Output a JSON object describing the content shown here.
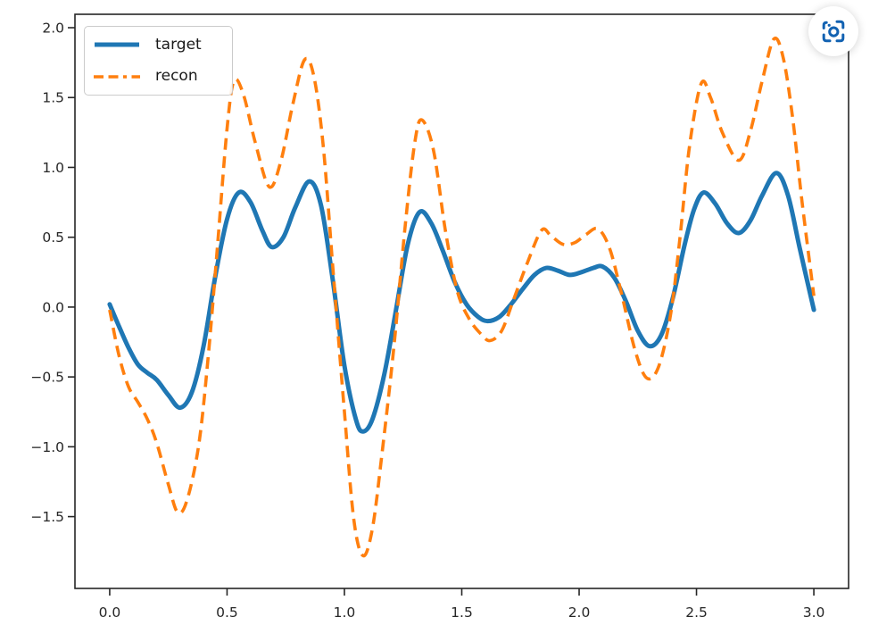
{
  "page": {
    "background": "#ffffff"
  },
  "capture_button": {
    "tooltip": "screen capture",
    "icon_color": "#1262b2"
  },
  "chart_data": {
    "type": "line",
    "title": "",
    "xlabel": "",
    "ylabel": "",
    "grid": false,
    "xlim": [
      -0.148,
      3.148
    ],
    "ylim": [
      -2.014,
      2.096
    ],
    "spine_color": "#262626",
    "tick_label_color": "#262626",
    "x_ticks": {
      "values": [
        0.0,
        0.5,
        1.0,
        1.5,
        2.0,
        2.5,
        3.0
      ],
      "labels": [
        "0.0",
        "0.5",
        "1.0",
        "1.5",
        "2.0",
        "2.5",
        "3.0"
      ]
    },
    "y_ticks": {
      "values": [
        2.0,
        1.5,
        1.0,
        0.5,
        0.0,
        -0.5,
        -1.0,
        -1.5
      ],
      "labels": [
        "2.0",
        "1.5",
        "1.0",
        "0.5",
        "0.0",
        "−0.5",
        "−1.0",
        "−1.5"
      ]
    },
    "legend": {
      "position": "upper-left",
      "items": [
        {
          "label": "target",
          "color": "#1f77b4",
          "style": "solid"
        },
        {
          "label": "recon",
          "color": "#ff7f0e",
          "style": "dashed"
        }
      ]
    },
    "series": [
      {
        "name": "target",
        "color": "#1f77b4",
        "style": "solid",
        "linewidth": 5,
        "points": [
          [
            0.0,
            0.02
          ],
          [
            0.04,
            -0.14
          ],
          [
            0.08,
            -0.29
          ],
          [
            0.12,
            -0.41
          ],
          [
            0.16,
            -0.47
          ],
          [
            0.2,
            -0.52
          ],
          [
            0.25,
            -0.63
          ],
          [
            0.3,
            -0.72
          ],
          [
            0.35,
            -0.61
          ],
          [
            0.4,
            -0.28
          ],
          [
            0.45,
            0.22
          ],
          [
            0.5,
            0.63
          ],
          [
            0.55,
            0.82
          ],
          [
            0.6,
            0.75
          ],
          [
            0.65,
            0.55
          ],
          [
            0.69,
            0.43
          ],
          [
            0.74,
            0.5
          ],
          [
            0.79,
            0.71
          ],
          [
            0.85,
            0.9
          ],
          [
            0.9,
            0.73
          ],
          [
            0.95,
            0.2
          ],
          [
            1.0,
            -0.42
          ],
          [
            1.05,
            -0.81
          ],
          [
            1.08,
            -0.89
          ],
          [
            1.12,
            -0.8
          ],
          [
            1.17,
            -0.48
          ],
          [
            1.22,
            -0.02
          ],
          [
            1.27,
            0.45
          ],
          [
            1.32,
            0.68
          ],
          [
            1.37,
            0.6
          ],
          [
            1.42,
            0.4
          ],
          [
            1.47,
            0.18
          ],
          [
            1.52,
            0.02
          ],
          [
            1.57,
            -0.07
          ],
          [
            1.61,
            -0.1
          ],
          [
            1.66,
            -0.07
          ],
          [
            1.71,
            0.02
          ],
          [
            1.76,
            0.13
          ],
          [
            1.81,
            0.23
          ],
          [
            1.86,
            0.28
          ],
          [
            1.91,
            0.26
          ],
          [
            1.96,
            0.23
          ],
          [
            2.01,
            0.25
          ],
          [
            2.06,
            0.28
          ],
          [
            2.1,
            0.29
          ],
          [
            2.15,
            0.21
          ],
          [
            2.2,
            0.04
          ],
          [
            2.25,
            -0.17
          ],
          [
            2.3,
            -0.28
          ],
          [
            2.35,
            -0.2
          ],
          [
            2.4,
            0.07
          ],
          [
            2.45,
            0.45
          ],
          [
            2.49,
            0.7
          ],
          [
            2.53,
            0.82
          ],
          [
            2.58,
            0.74
          ],
          [
            2.63,
            0.6
          ],
          [
            2.68,
            0.53
          ],
          [
            2.73,
            0.62
          ],
          [
            2.78,
            0.8
          ],
          [
            2.84,
            0.96
          ],
          [
            2.89,
            0.8
          ],
          [
            2.94,
            0.42
          ],
          [
            3.0,
            -0.02
          ]
        ]
      },
      {
        "name": "recon",
        "color": "#ff7f0e",
        "style": "dashed",
        "linewidth": 3.6,
        "points": [
          [
            0.0,
            -0.02
          ],
          [
            0.04,
            -0.35
          ],
          [
            0.08,
            -0.57
          ],
          [
            0.12,
            -0.68
          ],
          [
            0.16,
            -0.8
          ],
          [
            0.2,
            -0.97
          ],
          [
            0.25,
            -1.27
          ],
          [
            0.29,
            -1.47
          ],
          [
            0.33,
            -1.38
          ],
          [
            0.38,
            -0.98
          ],
          [
            0.42,
            -0.35
          ],
          [
            0.46,
            0.45
          ],
          [
            0.5,
            1.28
          ],
          [
            0.53,
            1.62
          ],
          [
            0.57,
            1.52
          ],
          [
            0.62,
            1.18
          ],
          [
            0.68,
            0.86
          ],
          [
            0.73,
            1.05
          ],
          [
            0.78,
            1.45
          ],
          [
            0.83,
            1.77
          ],
          [
            0.87,
            1.65
          ],
          [
            0.91,
            1.15
          ],
          [
            0.95,
            0.3
          ],
          [
            1.0,
            -0.75
          ],
          [
            1.04,
            -1.52
          ],
          [
            1.08,
            -1.78
          ],
          [
            1.12,
            -1.58
          ],
          [
            1.16,
            -1.05
          ],
          [
            1.21,
            -0.3
          ],
          [
            1.26,
            0.6
          ],
          [
            1.3,
            1.18
          ],
          [
            1.33,
            1.34
          ],
          [
            1.38,
            1.12
          ],
          [
            1.43,
            0.55
          ],
          [
            1.48,
            0.12
          ],
          [
            1.53,
            -0.08
          ],
          [
            1.58,
            -0.19
          ],
          [
            1.62,
            -0.24
          ],
          [
            1.67,
            -0.17
          ],
          [
            1.72,
            0.05
          ],
          [
            1.78,
            0.32
          ],
          [
            1.84,
            0.55
          ],
          [
            1.88,
            0.51
          ],
          [
            1.93,
            0.45
          ],
          [
            1.98,
            0.46
          ],
          [
            2.03,
            0.52
          ],
          [
            2.08,
            0.56
          ],
          [
            2.13,
            0.42
          ],
          [
            2.18,
            0.1
          ],
          [
            2.24,
            -0.32
          ],
          [
            2.29,
            -0.51
          ],
          [
            2.34,
            -0.42
          ],
          [
            2.39,
            -0.05
          ],
          [
            2.43,
            0.5
          ],
          [
            2.47,
            1.15
          ],
          [
            2.52,
            1.6
          ],
          [
            2.56,
            1.5
          ],
          [
            2.61,
            1.25
          ],
          [
            2.68,
            1.05
          ],
          [
            2.73,
            1.26
          ],
          [
            2.78,
            1.62
          ],
          [
            2.83,
            1.92
          ],
          [
            2.87,
            1.78
          ],
          [
            2.91,
            1.35
          ],
          [
            2.95,
            0.75
          ],
          [
            3.0,
            0.08
          ]
        ]
      }
    ]
  }
}
